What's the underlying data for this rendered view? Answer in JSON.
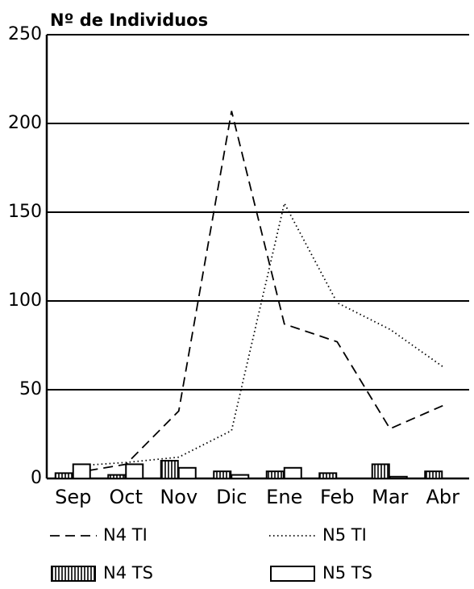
{
  "chart_data": {
    "type": "combo",
    "title": "Nº de Individuos",
    "categories": [
      "Sep",
      "Oct",
      "Nov",
      "Dic",
      "Ene",
      "Feb",
      "Mar",
      "Abr"
    ],
    "ylim": [
      0,
      250
    ],
    "yticks": [
      0,
      50,
      100,
      150,
      200,
      250
    ],
    "grid": true,
    "series": [
      {
        "name": "N4 TI",
        "type": "line",
        "dash": "dashed",
        "color": "#000000",
        "values": [
          3,
          8,
          38,
          207,
          87,
          77,
          28,
          41
        ]
      },
      {
        "name": "N5 TI",
        "type": "line",
        "dash": "dotted",
        "color": "#000000",
        "values": [
          7,
          9,
          12,
          27,
          155,
          99,
          84,
          63
        ]
      },
      {
        "name": "N4 TS",
        "type": "bar",
        "pattern": "hatched",
        "color": "#000000",
        "values": [
          3,
          2,
          10,
          4,
          4,
          3,
          8,
          4
        ]
      },
      {
        "name": "N5 TS",
        "type": "bar",
        "pattern": "empty",
        "color": "#000000",
        "values": [
          8,
          8,
          6,
          2,
          6,
          0,
          1,
          0
        ]
      }
    ]
  }
}
